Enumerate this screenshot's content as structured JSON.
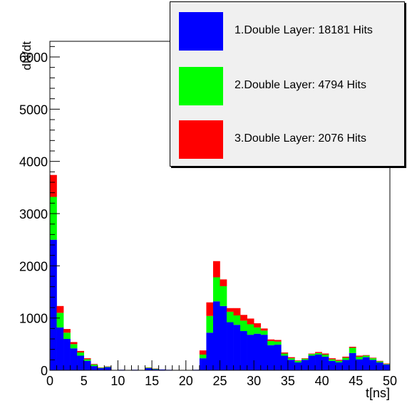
{
  "chart_data": {
    "type": "bar",
    "stacked": true,
    "ylabel": "dN/dt",
    "xlabel": "t[ns]",
    "xlim": [
      0,
      50
    ],
    "ylim": [
      0,
      6300
    ],
    "bin_width": 1,
    "x_ticks": [
      "0",
      "5",
      "10",
      "15",
      "20",
      "25",
      "30",
      "35",
      "40",
      "45",
      "50"
    ],
    "y_ticks": [
      "0",
      "1000",
      "2000",
      "3000",
      "4000",
      "5000",
      "6000"
    ],
    "legend_position": "top-right",
    "series": [
      {
        "name": "1.Double Layer: 18181 Hits",
        "color": "#0000ff",
        "values": [
          2500,
          820,
          600,
          420,
          280,
          180,
          80,
          40,
          60,
          0,
          10,
          0,
          10,
          0,
          40,
          20,
          15,
          10,
          5,
          5,
          5,
          10,
          230,
          720,
          1320,
          1230,
          920,
          870,
          750,
          680,
          700,
          680,
          480,
          490,
          280,
          200,
          150,
          200,
          280,
          300,
          260,
          180,
          150,
          200,
          330,
          210,
          250,
          200,
          150,
          110
        ]
      },
      {
        "name": "2.Double Layer: 4794 Hits",
        "color": "#00ff00",
        "values": [
          820,
          280,
          120,
          80,
          60,
          30,
          30,
          10,
          10,
          0,
          0,
          0,
          0,
          0,
          10,
          10,
          0,
          0,
          0,
          0,
          0,
          0,
          70,
          320,
          460,
          380,
          200,
          180,
          200,
          200,
          120,
          80,
          80,
          60,
          40,
          30,
          30,
          20,
          30,
          30,
          40,
          30,
          30,
          40,
          100,
          50,
          30,
          30,
          20,
          10
        ]
      },
      {
        "name": "3.Double Layer: 2076 Hits",
        "color": "#ff0000",
        "values": [
          420,
          130,
          70,
          40,
          30,
          20,
          10,
          5,
          5,
          0,
          0,
          0,
          0,
          0,
          5,
          5,
          0,
          0,
          0,
          0,
          0,
          0,
          80,
          260,
          310,
          130,
          70,
          140,
          110,
          110,
          80,
          40,
          30,
          30,
          20,
          20,
          10,
          10,
          10,
          20,
          20,
          20,
          20,
          20,
          20,
          20,
          10,
          10,
          10,
          10
        ]
      }
    ]
  }
}
